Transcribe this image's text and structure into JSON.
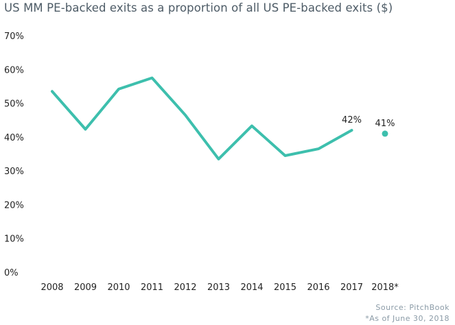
{
  "chart_data": {
    "type": "line",
    "title": "US MM PE-backed exits as a proportion of all US PE-backed exits ($)",
    "categories": [
      "2008",
      "2009",
      "2010",
      "2011",
      "2012",
      "2013",
      "2014",
      "2015",
      "2016",
      "2017",
      "2018*"
    ],
    "yticks": [
      "0%",
      "10%",
      "20%",
      "30%",
      "40%",
      "50%",
      "60%",
      "70%"
    ],
    "ylim": [
      0,
      70
    ],
    "grid": false,
    "series": [
      {
        "values": [
          53.5,
          42.3,
          54.2,
          57.5,
          46.5,
          33.5,
          43.3,
          34.5,
          36.5,
          42.0,
          41.0
        ]
      }
    ],
    "data_labels": {
      "2017": "42%",
      "2018*": "41%"
    },
    "separate_point_from": "2018*",
    "line_color": "#3dbfad",
    "source": "Source: PitchBook",
    "note": "*As of June 30, 2018"
  }
}
